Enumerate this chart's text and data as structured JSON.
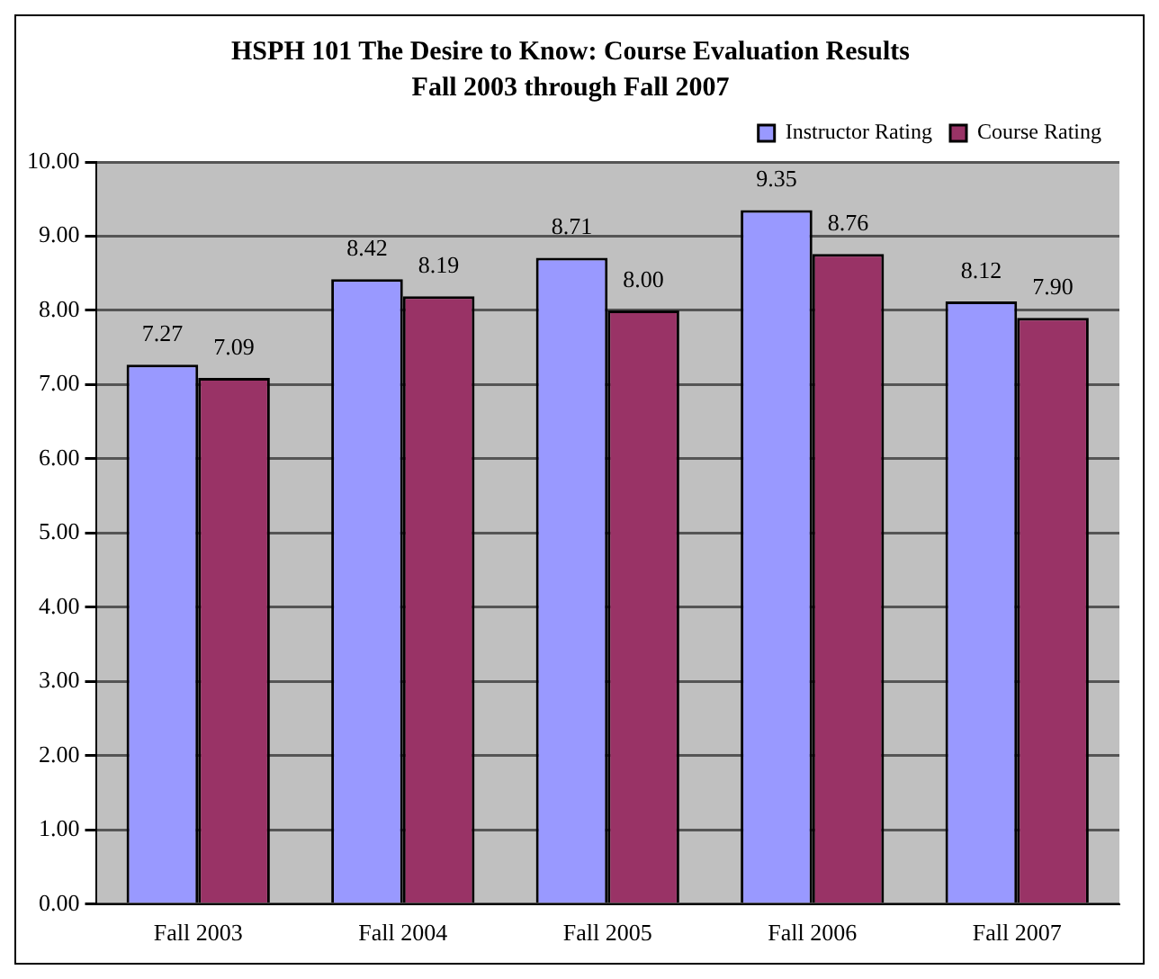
{
  "chart_data": {
    "type": "bar",
    "title": "HSPH 101 The Desire to Know: Course Evaluation Results",
    "subtitle": "Fall 2003 through Fall 2007",
    "categories": [
      "Fall 2003",
      "Fall 2004",
      "Fall 2005",
      "Fall 2006",
      "Fall 2007"
    ],
    "series": [
      {
        "name": "Instructor Rating",
        "color": "#9999ff",
        "values": [
          7.27,
          8.42,
          8.71,
          9.35,
          8.12
        ],
        "value_labels": [
          "7.27",
          "8.42",
          "8.71",
          "9.35",
          "8.12"
        ]
      },
      {
        "name": "Course Rating",
        "color": "#993366",
        "values": [
          7.09,
          8.19,
          8.0,
          8.76,
          7.9
        ],
        "value_labels": [
          "7.09",
          "8.19",
          "8.00",
          "8.76",
          "7.90"
        ]
      }
    ],
    "ylim": [
      0,
      10
    ],
    "yticks": [
      {
        "value": 0,
        "label": "0.00"
      },
      {
        "value": 1,
        "label": "1.00"
      },
      {
        "value": 2,
        "label": "2.00"
      },
      {
        "value": 3,
        "label": "3.00"
      },
      {
        "value": 4,
        "label": "4.00"
      },
      {
        "value": 5,
        "label": "5.00"
      },
      {
        "value": 6,
        "label": "6.00"
      },
      {
        "value": 7,
        "label": "7.00"
      },
      {
        "value": 8,
        "label": "8.00"
      },
      {
        "value": 9,
        "label": "9.00"
      },
      {
        "value": 10,
        "label": "10.00"
      }
    ],
    "grid": "y",
    "legend": "top right"
  }
}
